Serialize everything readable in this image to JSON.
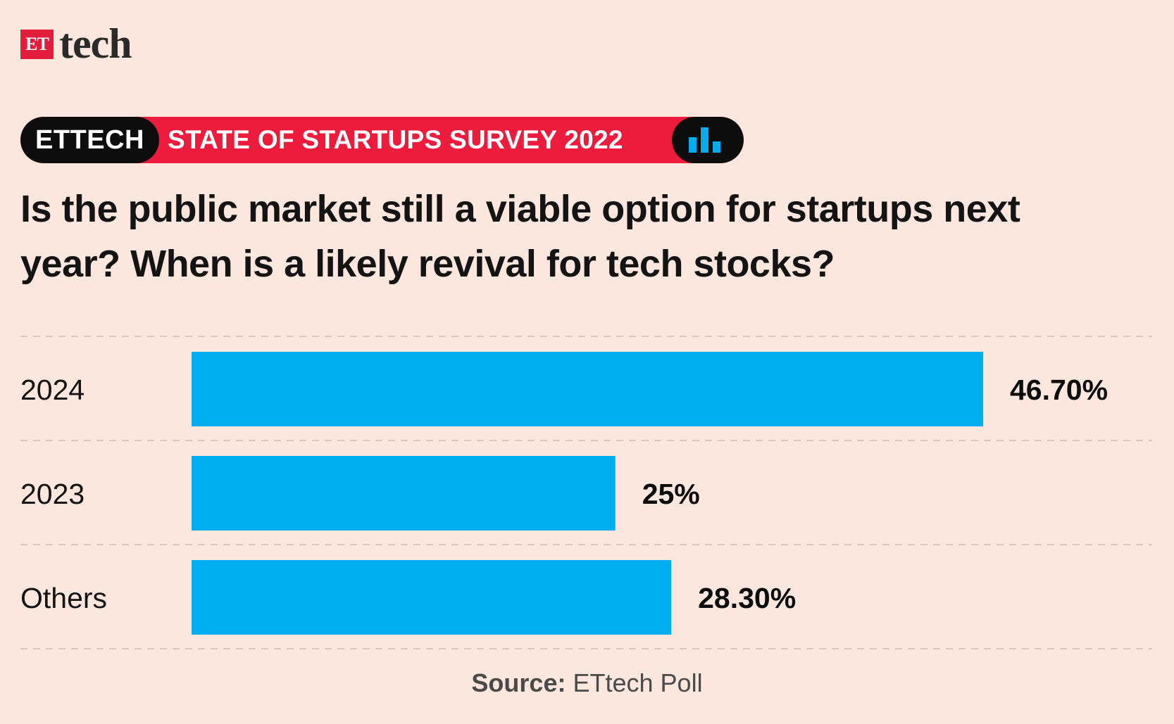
{
  "logo": {
    "et": "ET",
    "tech": "tech"
  },
  "banner": {
    "left_label": "ETTECH",
    "title": "STATE OF STARTUPS SURVEY 2022",
    "icon": "bar-chart-icon",
    "colors": {
      "red": "#ed1c3c",
      "black": "#0d0d0d",
      "icon_blue": "#00aeef"
    }
  },
  "question": "Is the public market still a viable option for startups next year? When is a likely revival for tech stocks?",
  "chart_data": {
    "type": "bar",
    "orientation": "horizontal",
    "categories": [
      "2024",
      "2023",
      "Others"
    ],
    "values": [
      46.7,
      25,
      28.3
    ],
    "value_labels": [
      "46.70%",
      "25%",
      "28.30%"
    ],
    "unit": "%",
    "bar_color": "#00aeef",
    "grid": "dashed horizontal separators",
    "xlim": [
      0,
      46.7
    ]
  },
  "source": {
    "label": "Source:",
    "text": "ETtech Poll"
  }
}
